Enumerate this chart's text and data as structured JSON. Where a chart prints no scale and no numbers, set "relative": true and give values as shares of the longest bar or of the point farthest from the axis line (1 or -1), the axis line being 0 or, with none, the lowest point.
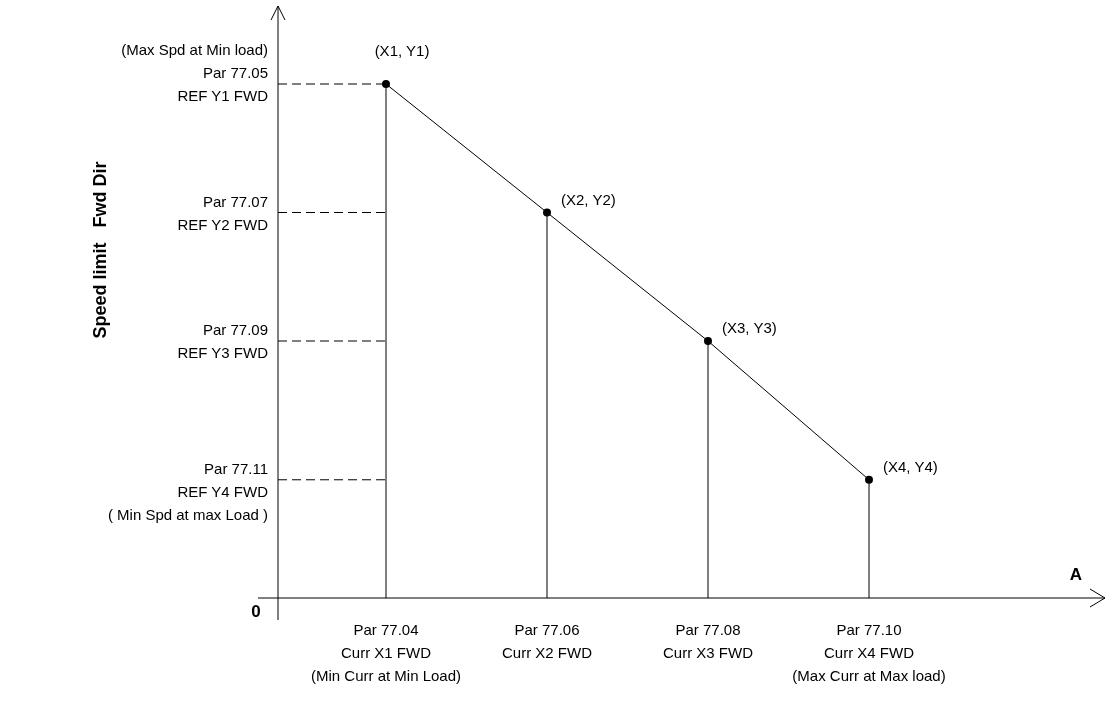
{
  "chart_data": {
    "type": "line",
    "relative": true,
    "categories": [
      "Par 77.04\nCurr X1 FWD\n(Min Curr at Min Load)",
      "Par 77.06\nCurr X2 FWD",
      "Par 77.08\nCurr X3 FWD",
      "Par 77.10\nCurr X4 FWD\n(Max Curr at Max load)"
    ],
    "series": [
      {
        "color": "#000000",
        "values": [
          1,
          0.75,
          0.5,
          0.23
        ]
      }
    ],
    "value_labels": [
      "(X1, Y1)",
      "(X2, Y2)",
      "(X3, Y3)",
      "(X4, Y4)"
    ],
    "marker": "circle",
    "line_style": "solid",
    "annotations": [
      "0",
      "A",
      "Speed limit   Fwd Dir"
    ],
    "ref_lines": [
      {
        "axis": "y",
        "value": 1,
        "label": "(Max Spd at Min load)\nPar 77.05\nREF Y1 FWD",
        "line_style": "dashed",
        "color": "#000000"
      },
      {
        "axis": "y",
        "value": 0.75,
        "label": "Par 77.07\nREF Y2 FWD",
        "line_style": "dashed",
        "color": "#000000"
      },
      {
        "axis": "y",
        "value": 0.5,
        "label": "Par 77.09\nREF Y3 FWD",
        "line_style": "dashed",
        "color": "#000000"
      },
      {
        "axis": "y",
        "value": 0.23,
        "label": "Par 77.11\nREF Y4 FWD\n( Min Spd at max Load )",
        "line_style": "dashed",
        "color": "#000000"
      },
      {
        "axis": "x",
        "value": "Par 77.04\nCurr X1 FWD\n(Min Curr at Min Load)",
        "line_style": "solid",
        "color": "#000000"
      },
      {
        "axis": "x",
        "value": "Par 77.06\nCurr X2 FWD",
        "line_style": "solid",
        "color": "#000000"
      },
      {
        "axis": "x",
        "value": "Par 77.08\nCurr X3 FWD",
        "line_style": "solid",
        "color": "#000000"
      },
      {
        "axis": "x",
        "value": "Par 77.10\nCurr X4 FWD\n(Max Curr at Max load)",
        "line_style": "solid",
        "color": "#000000"
      }
    ]
  }
}
